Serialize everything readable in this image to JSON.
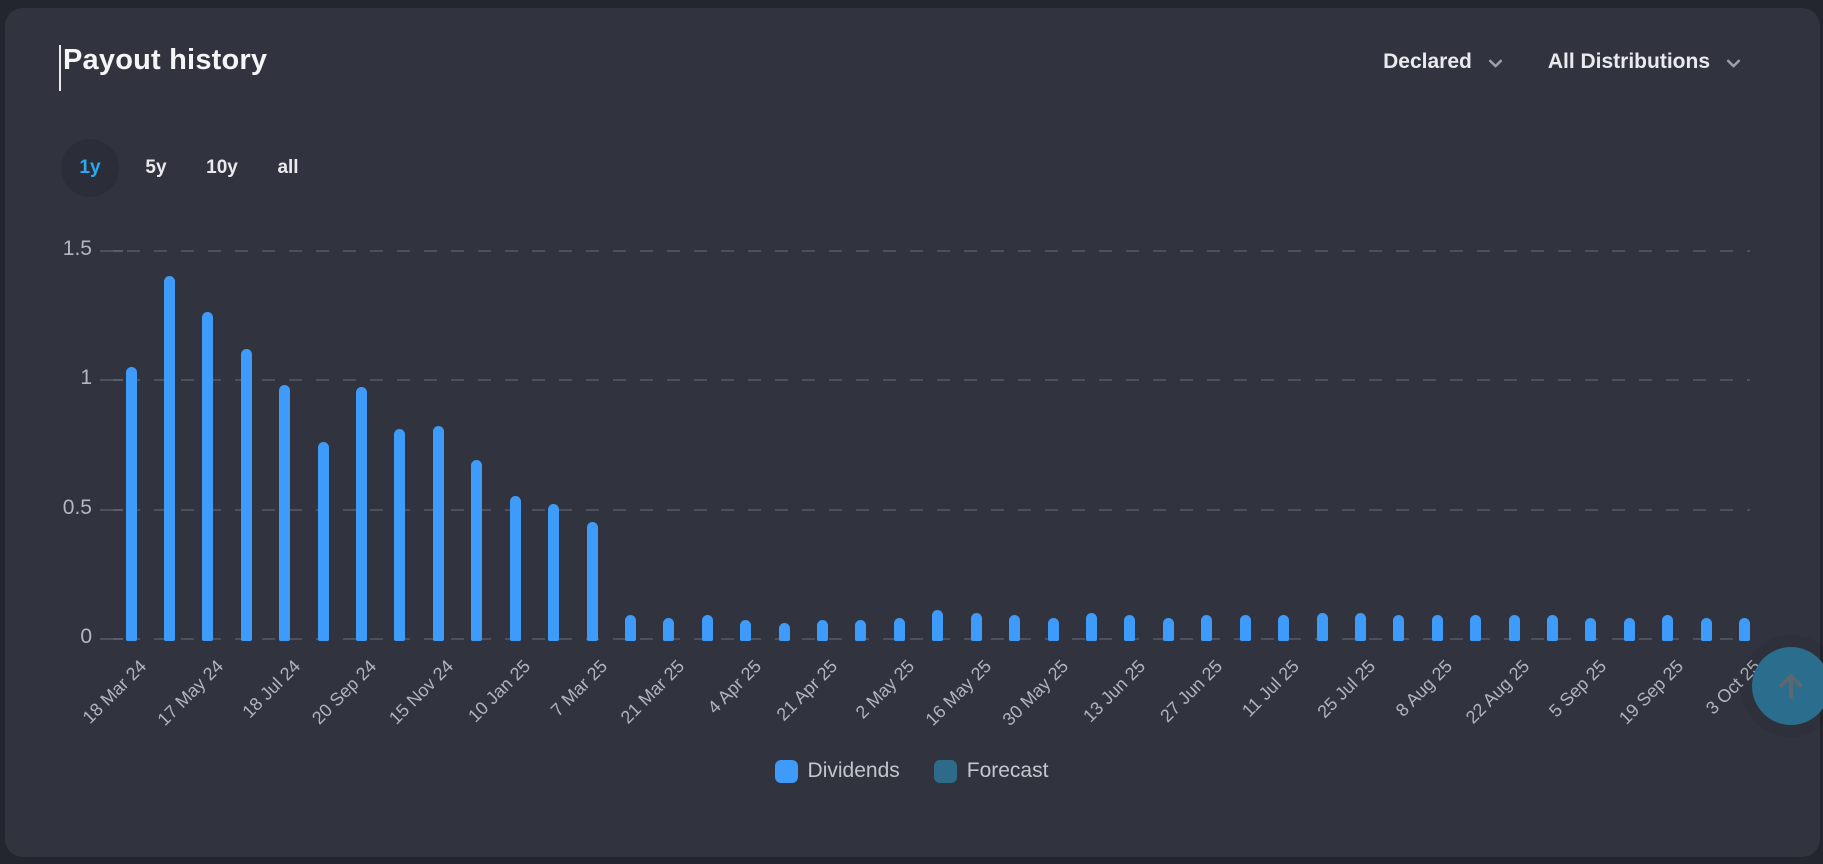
{
  "header": {
    "title": "Payout history",
    "filters": [
      {
        "label": "Declared"
      },
      {
        "label": "All Distributions"
      }
    ]
  },
  "range_tabs": [
    {
      "label": "1y",
      "active": true
    },
    {
      "label": "5y",
      "active": false
    },
    {
      "label": "10y",
      "active": false
    },
    {
      "label": "all",
      "active": false
    }
  ],
  "chart_data": {
    "type": "bar",
    "title": "Payout history",
    "xlabel": "",
    "ylabel": "",
    "ylim": [
      0,
      1.5
    ],
    "yticks": [
      0,
      0.5,
      1,
      1.5
    ],
    "grid": "horizontal-dashed",
    "legend_position": "bottom-center",
    "series": [
      {
        "name": "Dividends",
        "color": "#3f9bfa"
      },
      {
        "name": "Forecast",
        "color": "#2e6b8a"
      }
    ],
    "bars": [
      {
        "label": "18 Mar 24",
        "value": 1.06
      },
      {
        "label": "",
        "value": 1.41
      },
      {
        "label": "17 May 24",
        "value": 1.27
      },
      {
        "label": "",
        "value": 1.13
      },
      {
        "label": "18 Jul 24",
        "value": 0.99
      },
      {
        "label": "",
        "value": 0.77
      },
      {
        "label": "20 Sep 24",
        "value": 0.98
      },
      {
        "label": "",
        "value": 0.82
      },
      {
        "label": "15 Nov 24",
        "value": 0.83
      },
      {
        "label": "",
        "value": 0.7
      },
      {
        "label": "10 Jan 25",
        "value": 0.56
      },
      {
        "label": "",
        "value": 0.53
      },
      {
        "label": "7 Mar 25",
        "value": 0.46
      },
      {
        "label": "",
        "value": 0.1
      },
      {
        "label": "21 Mar 25",
        "value": 0.09
      },
      {
        "label": "",
        "value": 0.1
      },
      {
        "label": "4 Apr 25",
        "value": 0.08
      },
      {
        "label": "",
        "value": 0.07
      },
      {
        "label": "21 Apr 25",
        "value": 0.08
      },
      {
        "label": "",
        "value": 0.08
      },
      {
        "label": "2 May 25",
        "value": 0.09
      },
      {
        "label": "",
        "value": 0.12
      },
      {
        "label": "16 May 25",
        "value": 0.11
      },
      {
        "label": "",
        "value": 0.1
      },
      {
        "label": "30 May 25",
        "value": 0.09
      },
      {
        "label": "",
        "value": 0.11
      },
      {
        "label": "13 Jun 25",
        "value": 0.1
      },
      {
        "label": "",
        "value": 0.09
      },
      {
        "label": "27 Jun 25",
        "value": 0.1
      },
      {
        "label": "",
        "value": 0.1
      },
      {
        "label": "11 Jul 25",
        "value": 0.1
      },
      {
        "label": "",
        "value": 0.11
      },
      {
        "label": "25 Jul 25",
        "value": 0.11
      },
      {
        "label": "",
        "value": 0.1
      },
      {
        "label": "8 Aug 25",
        "value": 0.1
      },
      {
        "label": "",
        "value": 0.1
      },
      {
        "label": "22 Aug 25",
        "value": 0.1
      },
      {
        "label": "",
        "value": 0.1
      },
      {
        "label": "5 Sep 25",
        "value": 0.09
      },
      {
        "label": "",
        "value": 0.09
      },
      {
        "label": "19 Sep 25",
        "value": 0.1
      },
      {
        "label": "",
        "value": 0.09
      },
      {
        "label": "3 Oct 25",
        "value": 0.09
      }
    ]
  },
  "colors": {
    "page_background": "#24262f",
    "card_background": "#31343f",
    "dividend_bar": "#3f9bfa",
    "forecast": "#2e6b8a",
    "gridline": "#4e515c",
    "axis_text": "#b3b7c0",
    "active_tab_text": "#2aa9f2",
    "scroll_button": "#2b6d8c"
  },
  "scroll_top": {
    "icon": "arrow-up"
  }
}
